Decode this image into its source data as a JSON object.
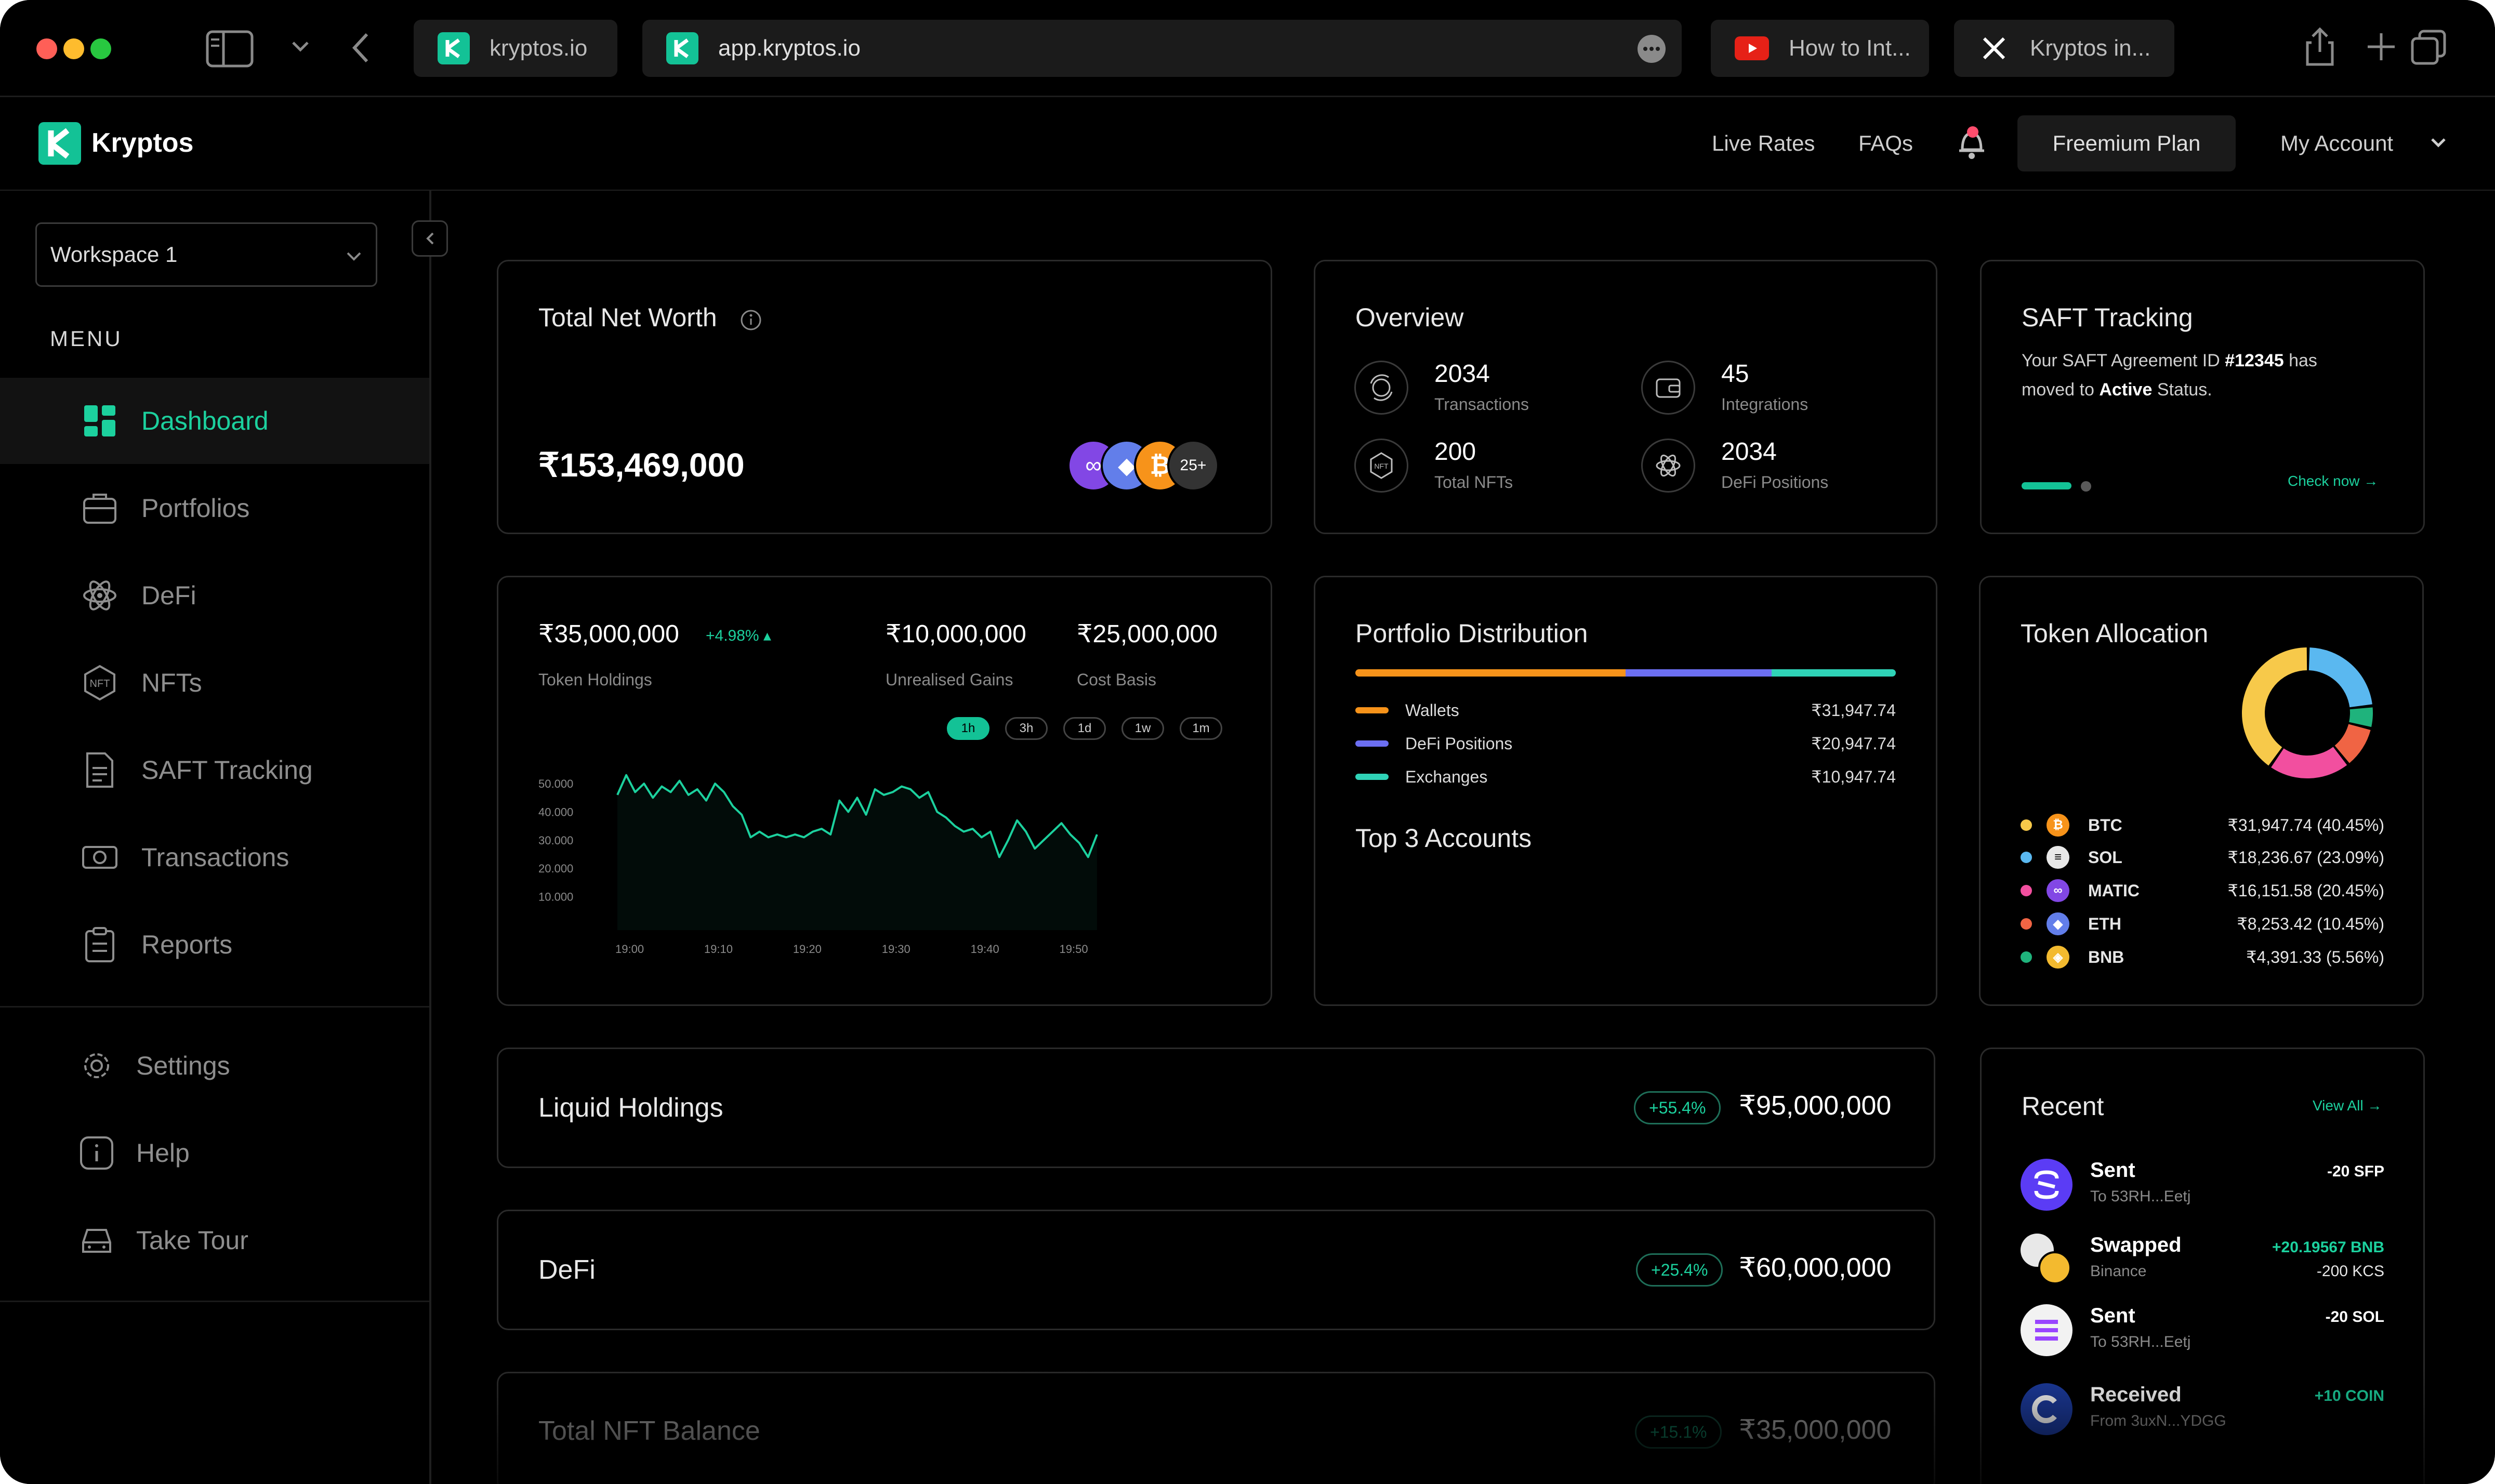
{
  "browser": {
    "tabs": [
      {
        "label": "kryptos.io"
      },
      {
        "label": "app.kryptos.io"
      },
      {
        "label": "How to Int..."
      },
      {
        "label": "Kryptos in..."
      }
    ]
  },
  "header": {
    "logo": "Kryptos",
    "live_rates": "Live Rates",
    "faqs": "FAQs",
    "plan": "Freemium Plan",
    "account": "My Account"
  },
  "sidebar": {
    "workspace": "Workspace 1",
    "menu_label": "MENU",
    "items": [
      {
        "label": "Dashboard"
      },
      {
        "label": "Portfolios"
      },
      {
        "label": "DeFi"
      },
      {
        "label": "NFTs"
      },
      {
        "label": "SAFT Tracking"
      },
      {
        "label": "Transactions"
      },
      {
        "label": "Reports"
      }
    ],
    "footer_items": [
      {
        "label": "Settings"
      },
      {
        "label": "Help"
      },
      {
        "label": "Take Tour"
      }
    ]
  },
  "net_worth": {
    "title": "Total Net Worth",
    "value": "₹153,469,000",
    "more_count": "25+"
  },
  "overview": {
    "title": "Overview",
    "stats": [
      {
        "value": "2034",
        "label": "Transactions",
        "icon": "transactions-icon"
      },
      {
        "value": "45",
        "label": "Integrations",
        "icon": "wallet-icon"
      },
      {
        "value": "200",
        "label": "Total NFTs",
        "icon": "nft-icon"
      },
      {
        "value": "2034",
        "label": "DeFi Positions",
        "icon": "defi-icon"
      }
    ]
  },
  "saft": {
    "title": "SAFT Tracking",
    "line1_pre": "Your SAFT Agreement ID ",
    "id": "#12345",
    "line1_post": " has",
    "line2_pre": "moved to ",
    "status": "Active",
    "line2_post": " Status.",
    "link": "Check now →"
  },
  "holdings": {
    "token_value": "₹35,000,000",
    "token_change": "+4.98% ▴",
    "token_label": "Token Holdings",
    "gains_value": "₹10,000,000",
    "gains_label": "Unrealised Gains",
    "basis_value": "₹25,000,000",
    "basis_label": "Cost Basis",
    "ranges": [
      "1h",
      "3h",
      "1d",
      "1w",
      "1m"
    ],
    "active_range": "1h"
  },
  "chart_data": {
    "type": "area",
    "title": "",
    "xlabel": "",
    "ylabel": "",
    "x_ticks": [
      "19:00",
      "19:10",
      "19:20",
      "19:30",
      "19:40",
      "19:50"
    ],
    "y_ticks": [
      "50.000",
      "40.000",
      "30.000",
      "20.000",
      "10.000"
    ],
    "ylim": [
      0,
      57000
    ],
    "xlim": [
      0,
      55
    ],
    "color": "#1cd19e",
    "x": [
      0,
      1,
      2,
      3,
      4,
      5,
      6,
      7,
      8,
      9,
      10,
      11,
      12,
      13,
      14,
      15,
      16,
      17,
      18,
      19,
      20,
      21,
      22,
      23,
      24,
      25,
      26,
      27,
      28,
      29,
      30,
      31,
      32,
      33,
      34,
      35,
      36,
      37,
      38,
      39,
      40,
      41,
      42,
      43,
      44,
      45,
      46,
      47,
      48,
      49,
      50,
      51,
      52,
      53,
      54
    ],
    "values": [
      46000,
      53000,
      47000,
      50000,
      45000,
      49000,
      47000,
      51000,
      46000,
      48000,
      44000,
      50000,
      47000,
      42000,
      39000,
      31000,
      33000,
      31000,
      32000,
      31000,
      32000,
      31000,
      33000,
      34000,
      32000,
      44000,
      40000,
      45000,
      39000,
      48000,
      46000,
      47000,
      49000,
      48000,
      45000,
      47000,
      40000,
      38000,
      35000,
      33000,
      34000,
      31000,
      33000,
      24000,
      30000,
      37000,
      33000,
      27000,
      30000,
      33000,
      36000,
      32000,
      29000,
      24000,
      32000
    ]
  },
  "distribution": {
    "title": "Portfolio Distribution",
    "segments": [
      {
        "label": "Wallets",
        "value": "₹31,947.74",
        "color": "#f7931a",
        "share": 0.5
      },
      {
        "label": "DeFi Positions",
        "value": "₹20,947.74",
        "color": "#6c6ff2",
        "share": 0.27
      },
      {
        "label": "Exchanges",
        "value": "₹10,947.74",
        "color": "#2fd3b7",
        "share": 0.23
      }
    ],
    "top_title": "Top 3 Accounts"
  },
  "allocation": {
    "title": "Token Allocation",
    "tokens": [
      {
        "sym": "BTC",
        "value": "₹31,947.74",
        "pct": "(40.45%)",
        "color": "#f7c94a",
        "coin": "#f7931a",
        "glyph": "₿",
        "share": 40.45
      },
      {
        "sym": "SOL",
        "value": "₹18,236.67",
        "pct": "(23.09%)",
        "color": "#5ab8f0",
        "coin": "#e8e8e8",
        "glyph": "≡",
        "share": 23.09
      },
      {
        "sym": "MATIC",
        "value": "₹16,151.58",
        "pct": "(20.45%)",
        "color": "#f24f9f",
        "coin": "#8247e5",
        "glyph": "∞",
        "share": 20.45
      },
      {
        "sym": "ETH",
        "value": "₹8,253.42",
        "pct": "(10.45%)",
        "color": "#f06444",
        "coin": "#627eea",
        "glyph": "◆",
        "share": 10.45
      },
      {
        "sym": "BNB",
        "value": "₹4,391.33",
        "pct": "(5.56%)",
        "color": "#1fb37c",
        "coin": "#f3ba2f",
        "glyph": "◈",
        "share": 5.56
      }
    ]
  },
  "rows": [
    {
      "title": "Liquid Holdings",
      "change": "+55.4%",
      "value": "₹95,000,000"
    },
    {
      "title": "DeFi",
      "change": "+25.4%",
      "value": "₹60,000,000"
    },
    {
      "title": "Total NFT Balance",
      "change": "+15.1%",
      "value": "₹35,000,000"
    }
  ],
  "recent": {
    "title": "Recent",
    "view_all": "View All →",
    "items": [
      {
        "title": "Sent",
        "sub": "To 53RH...Eetj",
        "amount": "-20 SFP",
        "amount2": "",
        "color": "#ffffff"
      },
      {
        "title": "Swapped",
        "sub": "Binance",
        "amount": "+20.19567 BNB",
        "amount2": "-200 KCS",
        "color": "#1cd19e"
      },
      {
        "title": "Sent",
        "sub": "To 53RH...Eetj",
        "amount": "-20 SOL",
        "amount2": "",
        "color": "#ffffff"
      },
      {
        "title": "Received",
        "sub": "From 3uxN...YDGG",
        "amount": "+10 COIN",
        "amount2": "",
        "color": "#1cd19e"
      }
    ]
  }
}
